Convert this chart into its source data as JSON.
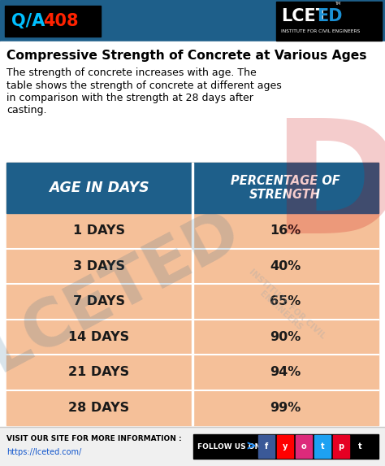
{
  "title": "Compressive Strength of Concrete at Various Ages",
  "header_bg": "#1e5f8a",
  "header_text_color": "#ffffff",
  "row_bg": "#f5c099",
  "row_text_color": "#1a1a1a",
  "col1_header": "AGE IN DAYS",
  "col2_header": "PERCENTAGE OF\nSTRENGTH",
  "ages": [
    "1 DAYS",
    "3 DAYS",
    "7 DAYS",
    "14 DAYS",
    "21 DAYS",
    "28 DAYS"
  ],
  "percentages": [
    "16%",
    "40%",
    "65%",
    "90%",
    "94%",
    "99%"
  ],
  "top_bar_bg": "#1e5f8a",
  "top_left_box_bg": "#000000",
  "top_left_text_color": "#00bfff",
  "top_left_num_color": "#ff2200",
  "logo_sub": "INSTITUTE FOR CIVIL ENGINEERS",
  "bottom_left_label": "VISIT OUR SITE FOR MORE INFORMATION :",
  "bottom_left_link": "https://lceted.com/",
  "bottom_right_label": "FOLLOW US ON",
  "watermark_color_blue": "#1e5f8a",
  "watermark_color_red": "#cc0000",
  "desc_lines": [
    "The strength of concrete increases with age. The",
    "table shows the strength of concrete at different ages",
    "in comparison with the strength at 28 days after",
    "casting."
  ]
}
